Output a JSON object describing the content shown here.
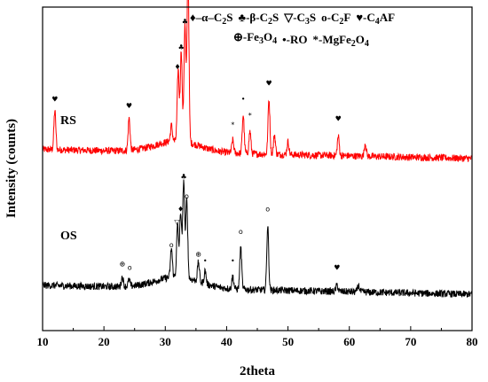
{
  "chart_data": {
    "type": "line",
    "xlabel": "2theta",
    "ylabel": "Intensity (counts)",
    "xlim": [
      10,
      80
    ],
    "x_ticks": [
      "10",
      "20",
      "30",
      "40",
      "50",
      "60",
      "70",
      "80"
    ],
    "legend_placement": "top-right",
    "legend": {
      "row1": [
        {
          "symbol": "♦",
          "label": "–α–C2S"
        },
        {
          "symbol": "♣",
          "label": "-β-C2S"
        },
        {
          "symbol": "▽",
          "label": "-C3S"
        },
        {
          "symbol": "o",
          "label": "-C2F"
        },
        {
          "symbol": "♥",
          "label": "-C4AF"
        }
      ],
      "row2": [
        {
          "symbol": "⊕",
          "label": "-Fe3O4"
        },
        {
          "symbol": "•",
          "label": "-RO"
        },
        {
          "symbol": "*",
          "label": "-MgFe2O4"
        }
      ]
    },
    "series": [
      {
        "name": "RS",
        "color": "#ff0000",
        "baseline": 0.56,
        "peaks": [
          {
            "x": 12.0,
            "h": 0.12
          },
          {
            "x": 24.1,
            "h": 0.1
          },
          {
            "x": 31.0,
            "h": 0.05
          },
          {
            "x": 32.1,
            "h": 0.22
          },
          {
            "x": 32.6,
            "h": 0.28
          },
          {
            "x": 33.2,
            "h": 0.36
          },
          {
            "x": 33.7,
            "h": 0.53
          },
          {
            "x": 41.0,
            "h": 0.04
          },
          {
            "x": 42.7,
            "h": 0.12
          },
          {
            "x": 43.8,
            "h": 0.07
          },
          {
            "x": 46.9,
            "h": 0.17
          },
          {
            "x": 47.8,
            "h": 0.06
          },
          {
            "x": 50.0,
            "h": 0.04
          },
          {
            "x": 58.2,
            "h": 0.06
          },
          {
            "x": 62.6,
            "h": 0.04
          }
        ],
        "markers": [
          {
            "x": 12.0,
            "symbol": "♥"
          },
          {
            "x": 24.1,
            "symbol": "♥"
          },
          {
            "x": 32.0,
            "symbol": "♦"
          },
          {
            "x": 32.6,
            "symbol": "♣"
          },
          {
            "x": 33.2,
            "symbol": "♣"
          },
          {
            "x": 33.7,
            "symbol": "♥"
          },
          {
            "x": 41.0,
            "symbol": "*"
          },
          {
            "x": 42.7,
            "symbol": "•"
          },
          {
            "x": 43.8,
            "symbol": "*"
          },
          {
            "x": 46.9,
            "symbol": "♥"
          },
          {
            "x": 58.2,
            "symbol": "♥"
          }
        ]
      },
      {
        "name": "OS",
        "color": "#000000",
        "baseline": 0.14,
        "peaks": [
          {
            "x": 23.0,
            "h": 0.03
          },
          {
            "x": 24.1,
            "h": 0.02
          },
          {
            "x": 31.0,
            "h": 0.09
          },
          {
            "x": 32.0,
            "h": 0.16
          },
          {
            "x": 32.5,
            "h": 0.2
          },
          {
            "x": 33.0,
            "h": 0.3
          },
          {
            "x": 33.5,
            "h": 0.24
          },
          {
            "x": 35.4,
            "h": 0.06
          },
          {
            "x": 36.5,
            "h": 0.04
          },
          {
            "x": 41.0,
            "h": 0.04
          },
          {
            "x": 42.3,
            "h": 0.13
          },
          {
            "x": 46.7,
            "h": 0.2
          },
          {
            "x": 58.0,
            "h": 0.02
          },
          {
            "x": 61.5,
            "h": 0.02
          }
        ],
        "markers": [
          {
            "x": 23.0,
            "symbol": "⊕"
          },
          {
            "x": 24.2,
            "symbol": "o"
          },
          {
            "x": 31.0,
            "symbol": "o"
          },
          {
            "x": 31.9,
            "symbol": "▽"
          },
          {
            "x": 32.5,
            "symbol": "♦"
          },
          {
            "x": 33.0,
            "symbol": "♣"
          },
          {
            "x": 33.5,
            "symbol": "o"
          },
          {
            "x": 35.4,
            "symbol": "⊕"
          },
          {
            "x": 36.5,
            "symbol": "•"
          },
          {
            "x": 41.0,
            "symbol": "•"
          },
          {
            "x": 42.3,
            "symbol": "o"
          },
          {
            "x": 46.7,
            "symbol": "o"
          },
          {
            "x": 58.0,
            "symbol": "♥"
          }
        ]
      }
    ]
  }
}
